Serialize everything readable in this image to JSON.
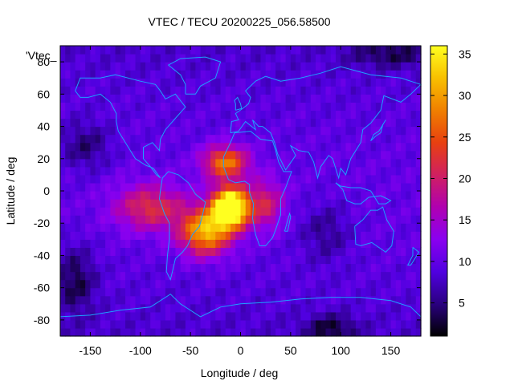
{
  "chart_data": {
    "type": "heatmap",
    "title": "VTEC / TECU 20200225_056.58500",
    "xlabel": "Longitude / deg",
    "ylabel": "Latitude / deg",
    "legend_key": "'Vtec_",
    "xlim": [
      -180,
      180
    ],
    "ylim": [
      -90,
      90
    ],
    "x_ticks": [
      -150,
      -100,
      -50,
      0,
      50,
      100,
      150
    ],
    "y_ticks": [
      -80,
      -60,
      -40,
      -20,
      0,
      20,
      40,
      60,
      80
    ],
    "colorbar": {
      "range": [
        1,
        36
      ],
      "ticks": [
        5,
        10,
        15,
        20,
        25,
        30,
        35
      ],
      "palette": [
        "#000000",
        "#2a0080",
        "#5000e0",
        "#8a00f0",
        "#b000b0",
        "#d02060",
        "#e84010",
        "#f08000",
        "#f8c000",
        "#ffff20"
      ]
    },
    "coastline_color": "#1ea0ff",
    "background_tec": 8,
    "anomalies": [
      {
        "name": "main-peak",
        "lon": -10,
        "lat": -10,
        "value": 36,
        "lon_width": 18,
        "lat_width": 12
      },
      {
        "name": "atlantic-north",
        "lon": -15,
        "lat": 18,
        "value": 18,
        "lon_width": 22,
        "lat_width": 10
      },
      {
        "name": "south-atlantic",
        "lon": -35,
        "lat": -25,
        "value": 22,
        "lon_width": 25,
        "lat_width": 14
      },
      {
        "name": "western-lobe",
        "lon": -90,
        "lat": -10,
        "value": 12,
        "lon_width": 35,
        "lat_width": 14
      },
      {
        "name": "eastern-lobe",
        "lon": 25,
        "lat": -8,
        "value": 10,
        "lon_width": 18,
        "lat_width": 15
      },
      {
        "name": "dark-pacific-north",
        "lon": -155,
        "lat": 28,
        "value": -5,
        "lon_width": 25,
        "lat_width": 15
      },
      {
        "name": "dark-pacific-south",
        "lon": -165,
        "lat": -55,
        "value": -6,
        "lon_width": 20,
        "lat_width": 20
      },
      {
        "name": "dark-indian",
        "lon": 85,
        "lat": -25,
        "value": -4,
        "lon_width": 25,
        "lat_width": 18
      },
      {
        "name": "dark-antarctic",
        "lon": 90,
        "lat": -85,
        "value": -6,
        "lon_width": 25,
        "lat_width": 8
      },
      {
        "name": "dark-arctic",
        "lon": 150,
        "lat": 85,
        "value": -5,
        "lon_width": 40,
        "lat_width": 8
      }
    ]
  }
}
